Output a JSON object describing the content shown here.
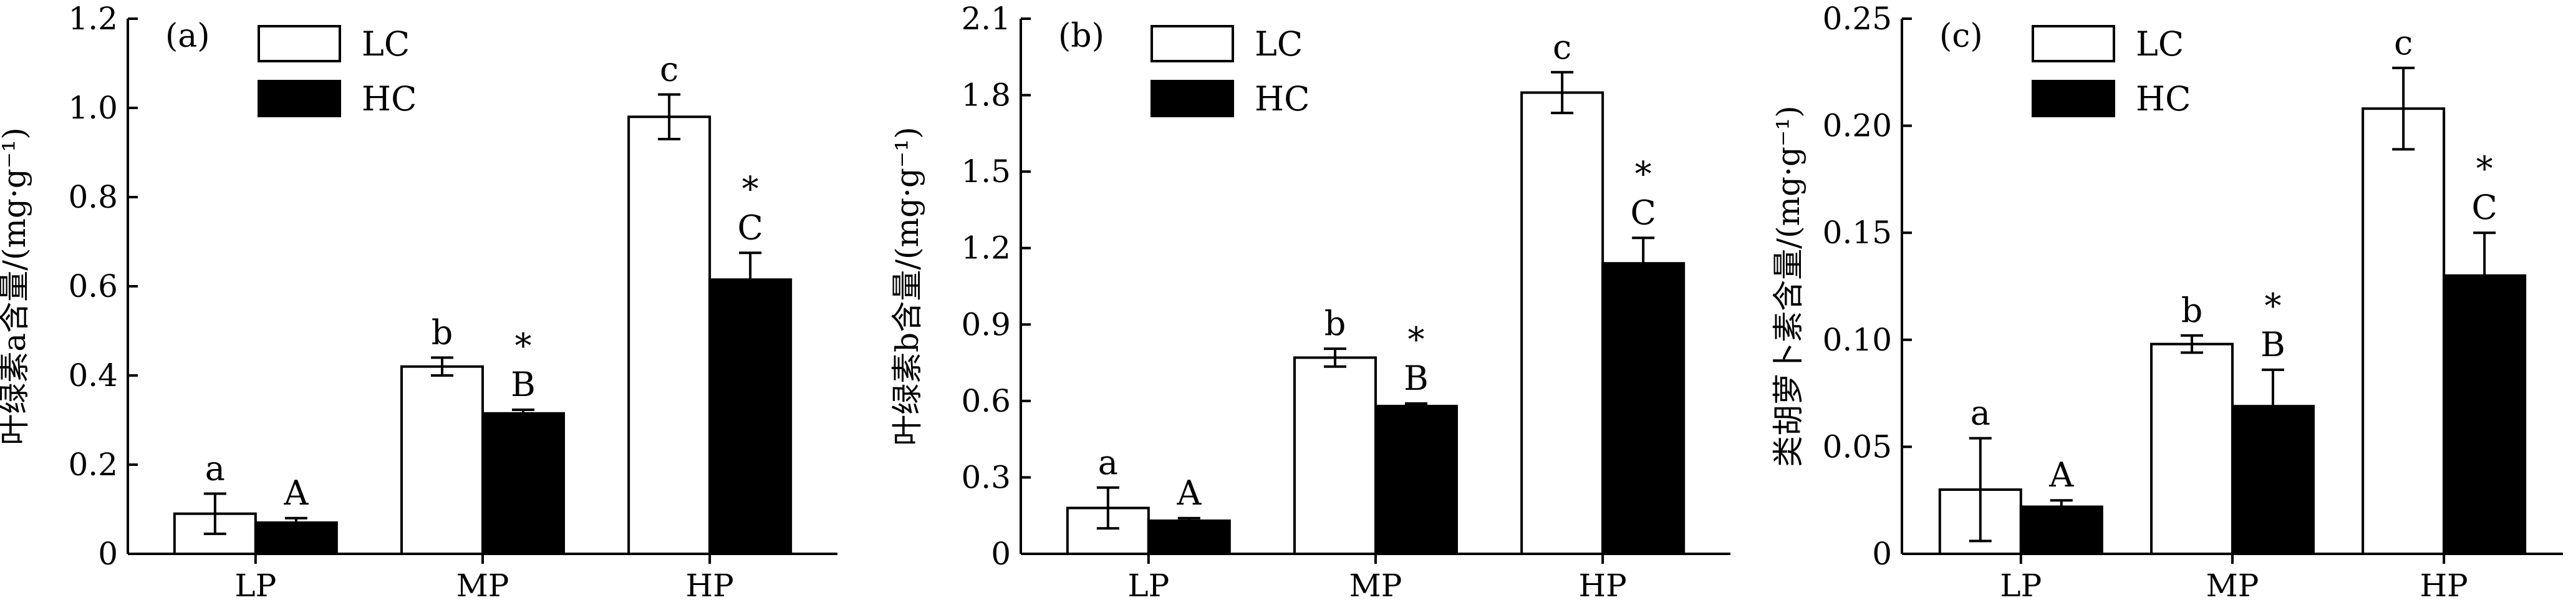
{
  "legend": [
    {
      "label": "LC",
      "fill": "#ffffff"
    },
    {
      "label": "HC",
      "fill": "#000000"
    }
  ],
  "charts": [
    {
      "type": "bar",
      "panel_label": "(a)",
      "ylabel": "叶绿素a含量/(mg·g⁻¹)",
      "categories": [
        "LP",
        "MP",
        "HP"
      ],
      "ylim": [
        0,
        1.2
      ],
      "yticks": [
        "0",
        "0.2",
        "0.4",
        "0.6",
        "0.8",
        "1.0",
        "1.2"
      ],
      "series": [
        {
          "name": "LC",
          "values": [
            0.09,
            0.42,
            0.98
          ],
          "errors": [
            0.045,
            0.02,
            0.05
          ],
          "labels": [
            "a",
            "b",
            "c"
          ],
          "stars": [
            "",
            "",
            ""
          ]
        },
        {
          "name": "HC",
          "values": [
            0.07,
            0.315,
            0.615
          ],
          "errors": [
            0.01,
            0.008,
            0.06
          ],
          "labels": [
            "A",
            "B",
            "C"
          ],
          "stars": [
            "",
            "*",
            "*"
          ]
        }
      ]
    },
    {
      "type": "bar",
      "panel_label": "(b)",
      "ylabel": "叶绿素b含量/(mg·g⁻¹)",
      "categories": [
        "LP",
        "MP",
        "HP"
      ],
      "ylim": [
        0,
        2.1
      ],
      "yticks": [
        "0",
        "0.3",
        "0.6",
        "0.9",
        "1.2",
        "1.5",
        "1.8",
        "2.1"
      ],
      "series": [
        {
          "name": "LC",
          "values": [
            0.18,
            0.77,
            1.81
          ],
          "errors": [
            0.08,
            0.035,
            0.08
          ],
          "labels": [
            "a",
            "b",
            "c"
          ],
          "stars": [
            "",
            "",
            ""
          ]
        },
        {
          "name": "HC",
          "values": [
            0.13,
            0.58,
            1.14
          ],
          "errors": [
            0.01,
            0.01,
            0.1
          ],
          "labels": [
            "A",
            "B",
            "C"
          ],
          "stars": [
            "",
            "*",
            "*"
          ]
        }
      ]
    },
    {
      "type": "bar",
      "panel_label": "(c)",
      "ylabel": "类胡萝卜素含量/(mg·g⁻¹)",
      "categories": [
        "LP",
        "MP",
        "HP"
      ],
      "ylim": [
        0,
        0.25
      ],
      "yticks": [
        "0",
        "0.05",
        "0.10",
        "0.15",
        "0.20",
        "0.25"
      ],
      "series": [
        {
          "name": "LC",
          "values": [
            0.03,
            0.098,
            0.208
          ],
          "errors": [
            0.024,
            0.004,
            0.019
          ],
          "labels": [
            "a",
            "b",
            "c"
          ],
          "stars": [
            "",
            "",
            ""
          ]
        },
        {
          "name": "HC",
          "values": [
            0.022,
            0.069,
            0.13
          ],
          "errors": [
            0.003,
            0.017,
            0.02
          ],
          "labels": [
            "A",
            "B",
            "C"
          ],
          "stars": [
            "",
            "*",
            "*"
          ]
        }
      ]
    }
  ]
}
